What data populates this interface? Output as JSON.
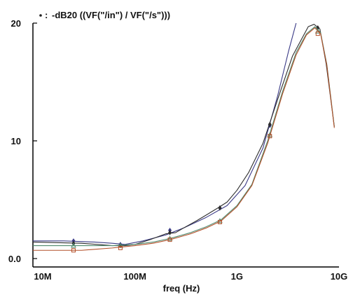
{
  "chart_data": {
    "type": "line",
    "title": "-dB20 ((VF(\"/in\") / VF(\"/s\")))",
    "xlabel": "freq (Hz)",
    "ylabel": "",
    "x_scale": "log",
    "xlim": [
      10000000,
      10000000000
    ],
    "ylim": [
      0,
      20
    ],
    "x_ticks": [
      {
        "value": 10000000,
        "label": "10M"
      },
      {
        "value": 100000000,
        "label": "100M"
      },
      {
        "value": 1000000000,
        "label": "1G"
      },
      {
        "value": 10000000000,
        "label": "10G"
      }
    ],
    "y_ticks": [
      {
        "value": 0,
        "label": "0.0"
      },
      {
        "value": 10,
        "label": "10"
      },
      {
        "value": 20,
        "label": "20"
      }
    ],
    "grid": false,
    "series": [
      {
        "color": "#3a3a86",
        "marker": "diamond",
        "x": [
          10000000,
          20000000,
          40000000,
          60000000,
          80000000,
          120000000,
          200000000,
          300000000,
          500000000,
          800000000,
          1200000000,
          1800000000,
          2500000000,
          3200000000,
          3800000000
        ],
        "y": [
          1.5,
          1.5,
          1.4,
          1.3,
          1.2,
          1.5,
          2.0,
          2.6,
          3.5,
          4.5,
          6.2,
          9.4,
          13.8,
          17.6,
          20.0
        ],
        "markers_x": [
          25000000,
          72000000,
          220000000,
          680000000,
          2100000000
        ],
        "markers_y": [
          1.5,
          1.2,
          2.4,
          4.3,
          11.3
        ]
      },
      {
        "color": "#2e2e2e",
        "marker": "diamond",
        "x": [
          10000000,
          30000000,
          60000000,
          80000000,
          100000000,
          140000000,
          200000000,
          250000000,
          300000000,
          400000000,
          500000000,
          650000000,
          800000000,
          1000000000,
          1300000000,
          1800000000,
          2500000000,
          3500000000,
          5000000000,
          5700000000,
          6500000000,
          7500000000,
          9000000000
        ],
        "y": [
          1.4,
          1.3,
          1.1,
          1.1,
          1.2,
          1.6,
          2.1,
          2.2,
          2.6,
          3.2,
          3.7,
          4.3,
          4.8,
          5.8,
          7.3,
          9.8,
          13.5,
          17.2,
          19.7,
          19.9,
          19.5,
          16.5,
          11.2
        ],
        "markers_x": [
          25000000,
          72000000,
          220000000,
          680000000,
          2100000000,
          6200000000
        ],
        "markers_y": [
          1.3,
          1.1,
          2.2,
          4.3,
          11.4,
          19.6
        ]
      },
      {
        "color": "#4f8a6e",
        "marker": "triangle",
        "x": [
          10000000,
          30000000,
          60000000,
          100000000,
          150000000,
          220000000,
          350000000,
          500000000,
          700000000,
          1000000000,
          1400000000,
          2000000000,
          2800000000,
          3800000000,
          4800000000,
          5800000000,
          6600000000,
          7600000000,
          9000000000
        ],
        "y": [
          1.1,
          1.1,
          1.1,
          1.2,
          1.4,
          1.7,
          2.2,
          2.7,
          3.3,
          4.5,
          6.3,
          10.0,
          14.2,
          17.5,
          19.1,
          19.7,
          19.2,
          16.5,
          11.2
        ],
        "markers_x": [
          25000000,
          72000000,
          220000000,
          680000000,
          2100000000,
          6200000000
        ],
        "markers_y": [
          1.1,
          1.1,
          1.7,
          3.2,
          10.5,
          19.3
        ]
      },
      {
        "color": "#b4502a",
        "marker": "square",
        "x": [
          10000000,
          30000000,
          60000000,
          100000000,
          150000000,
          220000000,
          350000000,
          500000000,
          700000000,
          1000000000,
          1400000000,
          2000000000,
          2800000000,
          3800000000,
          4800000000,
          5800000000,
          6600000000,
          7600000000,
          9000000000
        ],
        "y": [
          0.7,
          0.7,
          0.9,
          1.1,
          1.3,
          1.6,
          2.1,
          2.6,
          3.2,
          4.4,
          6.2,
          9.8,
          14.0,
          17.3,
          19.0,
          19.6,
          19.1,
          16.4,
          11.1
        ],
        "markers_x": [
          25000000,
          72000000,
          220000000,
          680000000,
          2100000000,
          6200000000
        ],
        "markers_y": [
          0.7,
          0.9,
          1.6,
          3.1,
          10.4,
          19.1
        ]
      }
    ]
  }
}
